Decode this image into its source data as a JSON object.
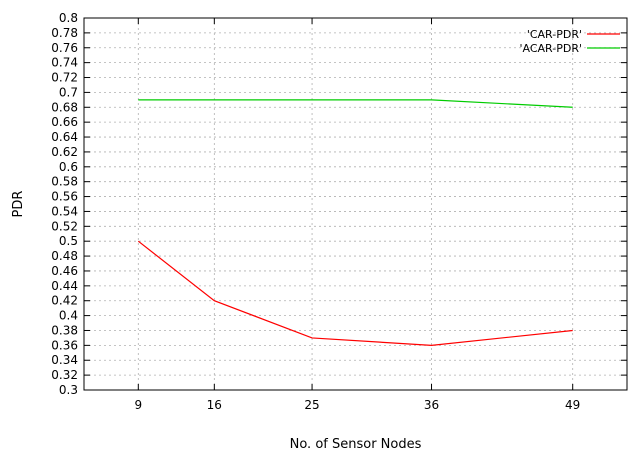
{
  "chart_data": {
    "type": "line",
    "xlabel": "No. of Sensor Nodes",
    "ylabel": "PDR",
    "x": [
      9,
      16,
      25,
      36,
      49
    ],
    "x_tick_labels": [
      "9",
      "16",
      "25",
      "36",
      "49"
    ],
    "y_ticks": [
      0.3,
      0.32,
      0.34,
      0.36,
      0.38,
      0.4,
      0.42,
      0.44,
      0.46,
      0.48,
      0.5,
      0.52,
      0.54,
      0.56,
      0.58,
      0.6,
      0.62,
      0.64,
      0.66,
      0.68,
      0.7,
      0.72,
      0.74,
      0.76,
      0.78,
      0.8
    ],
    "y_tick_labels": [
      "0.3",
      "0.32",
      "0.34",
      "0.36",
      "0.38",
      "0.4",
      "0.42",
      "0.44",
      "0.46",
      "0.48",
      "0.5",
      "0.52",
      "0.54",
      "0.56",
      "0.58",
      "0.6",
      "0.62",
      "0.64",
      "0.66",
      "0.68",
      "0.7",
      "0.72",
      "0.74",
      "0.76",
      "0.78",
      "0.8"
    ],
    "ylim": [
      0.3,
      0.8
    ],
    "grid": true,
    "legend_position": "top-right",
    "series": [
      {
        "name": "'CAR-PDR'",
        "color": "#ff0000",
        "values": [
          0.5,
          0.42,
          0.37,
          0.36,
          0.38
        ]
      },
      {
        "name": "'ACAR-PDR'",
        "color": "#00cc00",
        "values": [
          0.69,
          0.69,
          0.69,
          0.69,
          0.68
        ]
      }
    ]
  }
}
